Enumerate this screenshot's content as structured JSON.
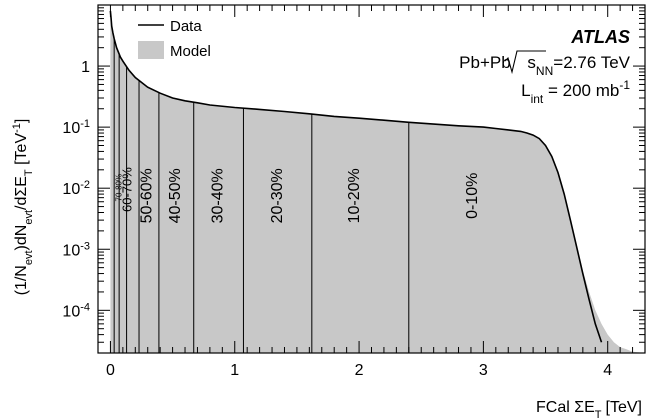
{
  "chart_data": {
    "type": "area",
    "xlabel": "FCal ΣE",
    "xlabel_sub": "T",
    "xlabel_unit": "[TeV]",
    "ylabel": {
      "p1": "(1/N",
      "p1_sub": "evt",
      "p2": ")dN",
      "p2_sub": "evt",
      "p3": "/dΣE",
      "p3_sub": "T",
      "p4": " [TeV",
      "p4_sup": "-1",
      "p5": "]"
    },
    "xlim": [
      -0.1,
      4.3
    ],
    "ylim": [
      2e-05,
      10
    ],
    "log_y": true,
    "x_ticks": [
      0,
      1,
      2,
      3,
      4
    ],
    "x_tick_labels": [
      "0",
      "1",
      "2",
      "3",
      "4"
    ],
    "y_ticks": [
      {
        "value": 1,
        "base": "1",
        "exp": ""
      },
      {
        "value": 0.1,
        "base": "10",
        "exp": "-1"
      },
      {
        "value": 0.01,
        "base": "10",
        "exp": "-2"
      },
      {
        "value": 0.001,
        "base": "10",
        "exp": "-3"
      },
      {
        "value": 0.0001,
        "base": "10",
        "exp": "-4"
      }
    ],
    "legend": {
      "placement": "top-left",
      "entries": [
        {
          "label": "Data",
          "style": "line",
          "color": "#000000"
        },
        {
          "label": "Model",
          "style": "fill",
          "color": "#c8c8c8"
        }
      ]
    },
    "annotations": {
      "experiment": "ATLAS",
      "line1": {
        "pre": "Pb+Pb ",
        "sqrt": "s",
        "sub": "NN",
        "post": "=2.76 TeV"
      },
      "line2": {
        "pre": "L",
        "sub": "int",
        "post": " = 200 mb",
        "sup": "-1"
      }
    },
    "centrality_boundaries": [
      0.03,
      0.07,
      0.13,
      0.23,
      0.39,
      0.67,
      1.07,
      1.62,
      2.4
    ],
    "centrality_labels": [
      {
        "label": "70-80%",
        "x": 0.09,
        "y": 0.0102,
        "size": "tiny"
      },
      {
        "label": "60-70%",
        "x": 0.17,
        "y": 0.0095,
        "size": "small"
      },
      {
        "label": "50-60%",
        "x": 0.33,
        "y": 0.0075,
        "size": "normal"
      },
      {
        "label": "40-50%",
        "x": 0.56,
        "y": 0.0075,
        "size": "normal"
      },
      {
        "label": "30-40%",
        "x": 0.9,
        "y": 0.0075,
        "size": "normal"
      },
      {
        "label": "20-30%",
        "x": 1.38,
        "y": 0.0075,
        "size": "normal"
      },
      {
        "label": "10-20%",
        "x": 2.0,
        "y": 0.0075,
        "size": "normal"
      },
      {
        "label": "0-10%",
        "x": 2.95,
        "y": 0.0075,
        "size": "normal"
      }
    ],
    "data": [
      [
        0.0,
        8.0
      ],
      [
        0.005,
        6.0
      ],
      [
        0.01,
        4.5
      ],
      [
        0.02,
        3.5
      ],
      [
        0.03,
        2.8
      ],
      [
        0.05,
        2.0
      ],
      [
        0.08,
        1.4
      ],
      [
        0.1,
        1.2
      ],
      [
        0.15,
        0.85
      ],
      [
        0.2,
        0.65
      ],
      [
        0.3,
        0.45
      ],
      [
        0.4,
        0.36
      ],
      [
        0.5,
        0.3
      ],
      [
        0.6,
        0.27
      ],
      [
        0.7,
        0.25
      ],
      [
        0.8,
        0.23
      ],
      [
        1.0,
        0.21
      ],
      [
        1.2,
        0.195
      ],
      [
        1.4,
        0.18
      ],
      [
        1.6,
        0.165
      ],
      [
        1.8,
        0.15
      ],
      [
        2.0,
        0.14
      ],
      [
        2.2,
        0.13
      ],
      [
        2.4,
        0.12
      ],
      [
        2.6,
        0.112
      ],
      [
        2.8,
        0.105
      ],
      [
        3.0,
        0.1
      ],
      [
        3.1,
        0.095
      ],
      [
        3.2,
        0.09
      ],
      [
        3.3,
        0.085
      ],
      [
        3.35,
        0.08
      ],
      [
        3.4,
        0.074
      ],
      [
        3.45,
        0.065
      ],
      [
        3.5,
        0.05
      ],
      [
        3.55,
        0.033
      ],
      [
        3.6,
        0.018
      ],
      [
        3.65,
        0.008
      ],
      [
        3.7,
        0.003
      ],
      [
        3.75,
        0.0011
      ],
      [
        3.8,
        0.0004
      ],
      [
        3.85,
        0.00015
      ],
      [
        3.9,
        6e-05
      ],
      [
        3.95,
        3e-05
      ]
    ],
    "model": [
      [
        0.0,
        8.0
      ],
      [
        0.005,
        6.0
      ],
      [
        0.01,
        4.5
      ],
      [
        0.02,
        3.5
      ],
      [
        0.03,
        2.8
      ],
      [
        0.05,
        2.0
      ],
      [
        0.08,
        1.4
      ],
      [
        0.1,
        1.2
      ],
      [
        0.15,
        0.85
      ],
      [
        0.2,
        0.65
      ],
      [
        0.3,
        0.45
      ],
      [
        0.4,
        0.36
      ],
      [
        0.5,
        0.3
      ],
      [
        0.6,
        0.27
      ],
      [
        0.7,
        0.25
      ],
      [
        0.8,
        0.23
      ],
      [
        1.0,
        0.21
      ],
      [
        1.2,
        0.195
      ],
      [
        1.4,
        0.18
      ],
      [
        1.6,
        0.165
      ],
      [
        1.8,
        0.15
      ],
      [
        2.0,
        0.14
      ],
      [
        2.2,
        0.13
      ],
      [
        2.4,
        0.12
      ],
      [
        2.6,
        0.112
      ],
      [
        2.8,
        0.105
      ],
      [
        3.0,
        0.1
      ],
      [
        3.1,
        0.095
      ],
      [
        3.2,
        0.09
      ],
      [
        3.3,
        0.085
      ],
      [
        3.35,
        0.08
      ],
      [
        3.4,
        0.074
      ],
      [
        3.45,
        0.065
      ],
      [
        3.5,
        0.05
      ],
      [
        3.55,
        0.033
      ],
      [
        3.6,
        0.018
      ],
      [
        3.65,
        0.008
      ],
      [
        3.7,
        0.003
      ],
      [
        3.75,
        0.0012
      ],
      [
        3.8,
        0.00045
      ],
      [
        3.85,
        0.0002
      ],
      [
        3.9,
        0.0001
      ],
      [
        3.95,
        6e-05
      ],
      [
        4.0,
        4e-05
      ],
      [
        4.05,
        3e-05
      ],
      [
        4.1,
        2.5e-05
      ],
      [
        4.15,
        2.3e-05
      ],
      [
        4.2,
        2.1e-05
      ],
      [
        4.3,
        2e-05
      ]
    ]
  }
}
